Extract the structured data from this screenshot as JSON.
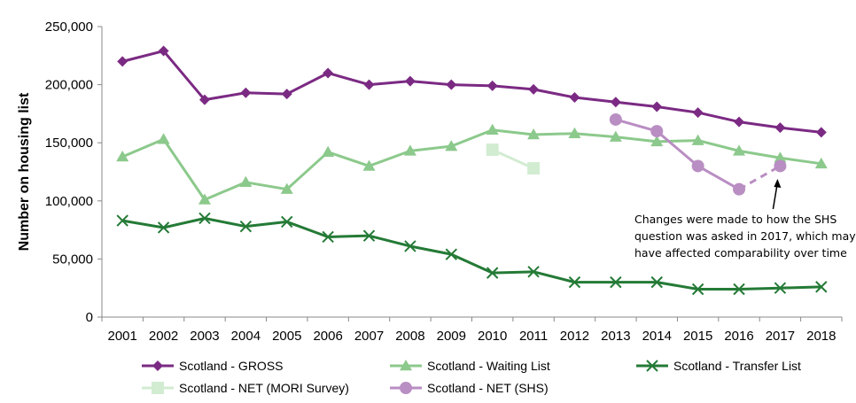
{
  "chart_data": {
    "type": "line",
    "ylabel": "Number on housing list",
    "ylim": [
      0,
      250000
    ],
    "yticks": [
      0,
      50000,
      100000,
      150000,
      200000,
      250000
    ],
    "ytick_labels": [
      "0",
      "50,000",
      "100,000",
      "150,000",
      "200,000",
      "250,000"
    ],
    "categories": [
      "2001",
      "2002",
      "2003",
      "2004",
      "2005",
      "2006",
      "2007",
      "2008",
      "2009",
      "2010",
      "2011",
      "2012",
      "2013",
      "2014",
      "2015",
      "2016",
      "2017",
      "2018"
    ],
    "grid": false,
    "legend_placement": "bottom",
    "series": [
      {
        "name": "Scotland - GROSS",
        "color": "#7b2a83",
        "marker": "diamond",
        "values": [
          220000,
          229000,
          187000,
          193000,
          192000,
          210000,
          200000,
          203000,
          200000,
          199000,
          196000,
          189000,
          185000,
          181000,
          176000,
          168000,
          163000,
          159000
        ]
      },
      {
        "name": "Scotland - Waiting List",
        "color": "#8cc98c",
        "marker": "triangle",
        "values": [
          138000,
          153000,
          101000,
          116000,
          110000,
          142000,
          130000,
          143000,
          147000,
          161000,
          157000,
          158000,
          155000,
          151000,
          152000,
          143000,
          137000,
          132000
        ]
      },
      {
        "name": "Scotland - Transfer List",
        "color": "#247a36",
        "marker": "x",
        "values": [
          83000,
          77000,
          85000,
          78000,
          82000,
          69000,
          70000,
          61000,
          54000,
          38000,
          39000,
          30000,
          30000,
          30000,
          24000,
          24000,
          25000,
          26000
        ]
      },
      {
        "name": "Scotland - NET (MORI Survey)",
        "color": "#d2ecd2",
        "marker": "square",
        "values": [
          null,
          null,
          null,
          null,
          null,
          null,
          null,
          null,
          null,
          144000,
          128000,
          null,
          null,
          null,
          null,
          null,
          null,
          null
        ]
      },
      {
        "name": "Scotland - NET (SHS)",
        "color": "#b98ec3",
        "marker": "circle",
        "values": [
          null,
          null,
          null,
          null,
          null,
          null,
          null,
          null,
          null,
          null,
          null,
          null,
          170000,
          160000,
          130000,
          110000,
          130000,
          null
        ],
        "dashed_last_segment": true
      }
    ],
    "annotation": {
      "lines": [
        "Changes were made to how the SHS",
        "question was asked in 2017, which may",
        "have affected comparability over time"
      ]
    }
  }
}
